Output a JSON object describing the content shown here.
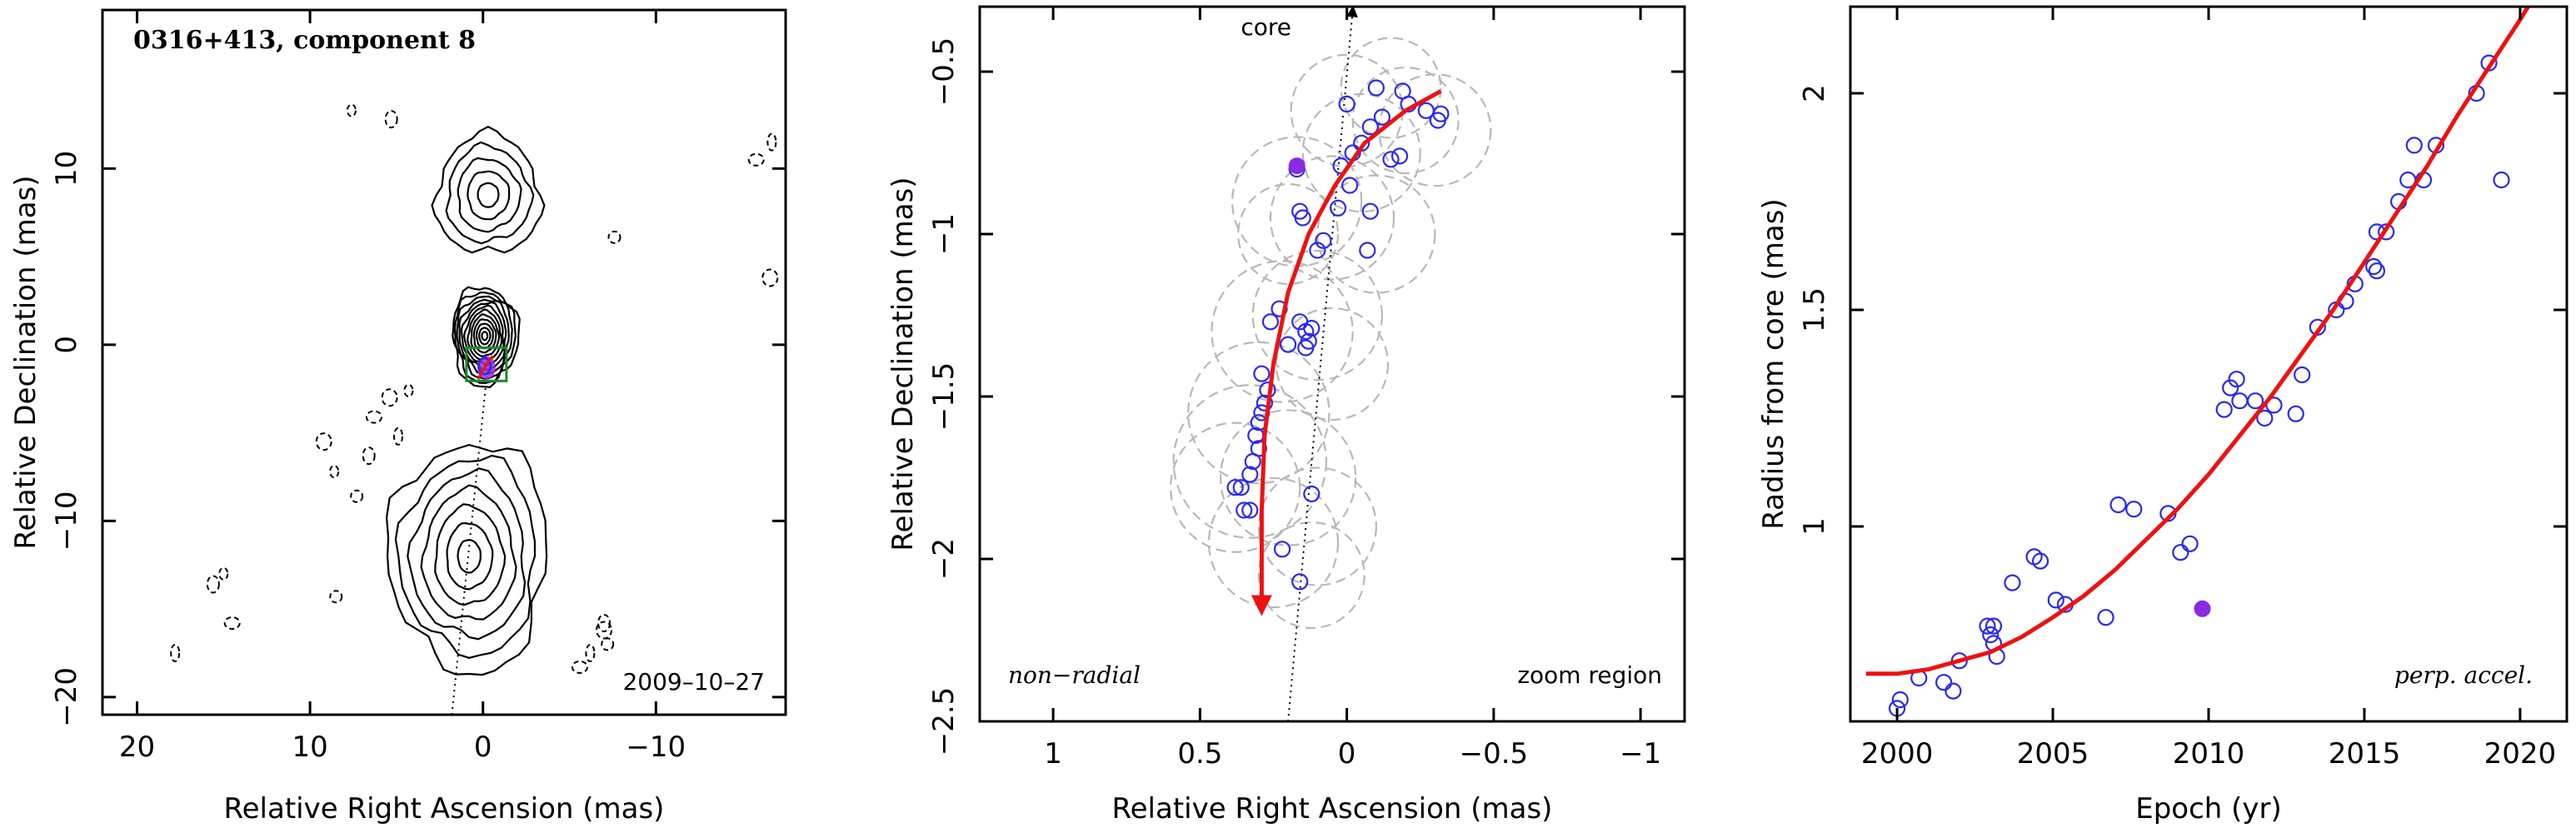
{
  "chart_data": [
    {
      "type": "contour",
      "title": "0316+413, component 8",
      "date_label": "2009–10–27",
      "xlabel": "Relative Right Ascension (mas)",
      "ylabel": "Relative Declination (mas)",
      "xlim": [
        22,
        -17.5
      ],
      "ylim": [
        -21,
        19
      ],
      "xticks": [
        20,
        10,
        0,
        -10
      ],
      "xtick_labels": [
        "20",
        "10",
        "0",
        "−10"
      ],
      "yticks": [
        10,
        0,
        -10,
        -20
      ],
      "ytick_labels": [
        "10",
        "0",
        "−10",
        "−20"
      ],
      "component_position": {
        "x": -0.2,
        "y": -1.3
      },
      "jet_axis": {
        "x1": 1.8,
        "y1": -21,
        "x2": -0.3,
        "y2": -1.0
      },
      "contour_regions": [
        {
          "name": "north lobe",
          "cx": -0.3,
          "cy": 8.5,
          "rx": 3.0,
          "ry": 3.4,
          "levels": 5
        },
        {
          "name": "core",
          "cx": -0.1,
          "cy": 0.5,
          "rx": 1.9,
          "ry": 2.8,
          "levels": 12
        },
        {
          "name": "south lobe",
          "cx": 0.8,
          "cy": -12.0,
          "rx": 4.6,
          "ry": 6.5,
          "levels": 7
        }
      ]
    },
    {
      "type": "scatter",
      "xlabel": "Relative Right Ascension (mas)",
      "ylabel": "Relative Declination (mas)",
      "xlim": [
        1.25,
        -1.15
      ],
      "ylim": [
        -2.5,
        -0.3
      ],
      "xticks": [
        1,
        0.5,
        0,
        -0.5,
        -1
      ],
      "xtick_labels": [
        "1",
        "0.5",
        "0",
        "−0.5",
        "−1"
      ],
      "yticks": [
        -0.5,
        -1,
        -1.5,
        -2,
        -2.5
      ],
      "ytick_labels": [
        "−0.5",
        "−1",
        "−1.5",
        "−2",
        "−2.5"
      ],
      "annotations": {
        "core": "core",
        "left": "non−radial",
        "right": "zoom region"
      },
      "core_line": {
        "x1": 0.2,
        "y1": -2.5,
        "x2": -0.02,
        "y2": -0.3
      },
      "highlight_point": {
        "x": 0.17,
        "y": -0.79
      },
      "points": [
        {
          "x": 0.35,
          "y": -1.85
        },
        {
          "x": 0.38,
          "y": -1.78
        },
        {
          "x": 0.36,
          "y": -1.78
        },
        {
          "x": 0.33,
          "y": -1.74
        },
        {
          "x": 0.32,
          "y": -1.7
        },
        {
          "x": 0.3,
          "y": -1.66
        },
        {
          "x": 0.31,
          "y": -1.62
        },
        {
          "x": 0.3,
          "y": -1.58
        },
        {
          "x": 0.29,
          "y": -1.55
        },
        {
          "x": 0.28,
          "y": -1.52
        },
        {
          "x": 0.27,
          "y": -1.48
        },
        {
          "x": 0.29,
          "y": -1.43
        },
        {
          "x": 0.33,
          "y": -1.85
        },
        {
          "x": 0.22,
          "y": -1.97
        },
        {
          "x": 0.12,
          "y": -1.8
        },
        {
          "x": 0.16,
          "y": -2.07
        },
        {
          "x": 0.26,
          "y": -1.27
        },
        {
          "x": 0.23,
          "y": -1.23
        },
        {
          "x": 0.2,
          "y": -1.34
        },
        {
          "x": 0.16,
          "y": -1.27
        },
        {
          "x": 0.14,
          "y": -1.3
        },
        {
          "x": 0.13,
          "y": -1.33
        },
        {
          "x": 0.14,
          "y": -1.35
        },
        {
          "x": 0.12,
          "y": -1.29
        },
        {
          "x": 0.1,
          "y": -1.05
        },
        {
          "x": 0.08,
          "y": -1.02
        },
        {
          "x": 0.15,
          "y": -0.95
        },
        {
          "x": 0.16,
          "y": -0.93
        },
        {
          "x": 0.17,
          "y": -0.8
        },
        {
          "x": 0.03,
          "y": -0.92
        },
        {
          "x": -0.01,
          "y": -0.85
        },
        {
          "x": 0.02,
          "y": -0.79
        },
        {
          "x": -0.02,
          "y": -0.75
        },
        {
          "x": -0.05,
          "y": -0.72
        },
        {
          "x": -0.08,
          "y": -0.67
        },
        {
          "x": -0.12,
          "y": -0.64
        },
        {
          "x": -0.15,
          "y": -0.77
        },
        {
          "x": -0.18,
          "y": -0.76
        },
        {
          "x": -0.08,
          "y": -0.93
        },
        {
          "x": -0.07,
          "y": -1.05
        },
        {
          "x": 0.0,
          "y": -0.6
        },
        {
          "x": -0.19,
          "y": -0.56
        },
        {
          "x": -0.21,
          "y": -0.6
        },
        {
          "x": -0.27,
          "y": -0.62
        },
        {
          "x": -0.31,
          "y": -0.65
        },
        {
          "x": -0.32,
          "y": -0.63
        },
        {
          "x": -0.1,
          "y": -0.55
        }
      ],
      "beam_circles": [
        {
          "x": 0.17,
          "y": -0.9,
          "r": 0.22
        },
        {
          "x": -0.05,
          "y": -0.75,
          "r": 0.2
        },
        {
          "x": -0.2,
          "y": -0.65,
          "r": 0.18
        },
        {
          "x": -0.3,
          "y": -0.68,
          "r": 0.19
        },
        {
          "x": 0.05,
          "y": -0.95,
          "r": 0.21
        },
        {
          "x": -0.1,
          "y": -1.0,
          "r": 0.2
        },
        {
          "x": 0.2,
          "y": -1.0,
          "r": 0.17
        },
        {
          "x": 0.1,
          "y": -1.25,
          "r": 0.22
        },
        {
          "x": 0.22,
          "y": -1.3,
          "r": 0.24
        },
        {
          "x": 0.05,
          "y": -1.4,
          "r": 0.19
        },
        {
          "x": 0.3,
          "y": -1.55,
          "r": 0.24
        },
        {
          "x": 0.33,
          "y": -1.7,
          "r": 0.26
        },
        {
          "x": 0.38,
          "y": -1.78,
          "r": 0.22
        },
        {
          "x": 0.2,
          "y": -1.75,
          "r": 0.23
        },
        {
          "x": 0.25,
          "y": -1.95,
          "r": 0.22
        },
        {
          "x": 0.1,
          "y": -1.9,
          "r": 0.2
        },
        {
          "x": 0.12,
          "y": -2.05,
          "r": 0.18
        },
        {
          "x": 0.0,
          "y": -0.62,
          "r": 0.19
        },
        {
          "x": -0.15,
          "y": -0.55,
          "r": 0.17
        }
      ],
      "fit_curve": [
        {
          "x": -0.32,
          "y": -0.56
        },
        {
          "x": -0.2,
          "y": -0.62
        },
        {
          "x": -0.06,
          "y": -0.72
        },
        {
          "x": 0.04,
          "y": -0.85
        },
        {
          "x": 0.13,
          "y": -1.0
        },
        {
          "x": 0.2,
          "y": -1.18
        },
        {
          "x": 0.25,
          "y": -1.4
        },
        {
          "x": 0.28,
          "y": -1.62
        },
        {
          "x": 0.29,
          "y": -1.85
        },
        {
          "x": 0.29,
          "y": -2.15
        }
      ]
    },
    {
      "type": "scatter",
      "xlabel": "Epoch (yr)",
      "ylabel": "Radius from core (mas)",
      "xlim": [
        1998.5,
        2021.5
      ],
      "ylim": [
        0.55,
        2.2
      ],
      "xticks": [
        2000,
        2005,
        2010,
        2015,
        2020
      ],
      "xtick_labels": [
        "2000",
        "2005",
        "2010",
        "2015",
        "2020"
      ],
      "yticks": [
        1,
        1.5,
        2
      ],
      "ytick_labels": [
        "1",
        "1.5",
        "2"
      ],
      "annotation": "perp. accel.",
      "highlight_point": {
        "x": 2009.8,
        "y": 0.81
      },
      "points": [
        {
          "x": 2000.0,
          "y": 0.58
        },
        {
          "x": 2000.1,
          "y": 0.6
        },
        {
          "x": 2000.7,
          "y": 0.65
        },
        {
          "x": 2001.5,
          "y": 0.64
        },
        {
          "x": 2001.8,
          "y": 0.62
        },
        {
          "x": 2002.0,
          "y": 0.69
        },
        {
          "x": 2002.9,
          "y": 0.77
        },
        {
          "x": 2003.0,
          "y": 0.75
        },
        {
          "x": 2003.1,
          "y": 0.77
        },
        {
          "x": 2003.1,
          "y": 0.73
        },
        {
          "x": 2003.2,
          "y": 0.7
        },
        {
          "x": 2003.7,
          "y": 0.87
        },
        {
          "x": 2004.4,
          "y": 0.93
        },
        {
          "x": 2004.6,
          "y": 0.92
        },
        {
          "x": 2005.1,
          "y": 0.83
        },
        {
          "x": 2005.4,
          "y": 0.82
        },
        {
          "x": 2006.7,
          "y": 0.79
        },
        {
          "x": 2007.1,
          "y": 1.05
        },
        {
          "x": 2007.6,
          "y": 1.04
        },
        {
          "x": 2008.7,
          "y": 1.03
        },
        {
          "x": 2009.1,
          "y": 0.94
        },
        {
          "x": 2009.4,
          "y": 0.96
        },
        {
          "x": 2010.5,
          "y": 1.27
        },
        {
          "x": 2010.7,
          "y": 1.32
        },
        {
          "x": 2010.9,
          "y": 1.34
        },
        {
          "x": 2011.0,
          "y": 1.29
        },
        {
          "x": 2011.5,
          "y": 1.29
        },
        {
          "x": 2011.8,
          "y": 1.25
        },
        {
          "x": 2012.1,
          "y": 1.28
        },
        {
          "x": 2012.8,
          "y": 1.26
        },
        {
          "x": 2013.0,
          "y": 1.35
        },
        {
          "x": 2013.5,
          "y": 1.46
        },
        {
          "x": 2014.1,
          "y": 1.5
        },
        {
          "x": 2014.4,
          "y": 1.52
        },
        {
          "x": 2014.7,
          "y": 1.56
        },
        {
          "x": 2015.3,
          "y": 1.6
        },
        {
          "x": 2015.4,
          "y": 1.59
        },
        {
          "x": 2015.4,
          "y": 1.68
        },
        {
          "x": 2015.7,
          "y": 1.68
        },
        {
          "x": 2016.1,
          "y": 1.75
        },
        {
          "x": 2016.4,
          "y": 1.8
        },
        {
          "x": 2016.6,
          "y": 1.88
        },
        {
          "x": 2016.9,
          "y": 1.8
        },
        {
          "x": 2017.3,
          "y": 1.88
        },
        {
          "x": 2018.6,
          "y": 2.0
        },
        {
          "x": 2019.0,
          "y": 2.07
        },
        {
          "x": 2019.4,
          "y": 1.8
        }
      ],
      "fit_curve": [
        {
          "x": 1999.0,
          "y": 0.66
        },
        {
          "x": 2000.0,
          "y": 0.66
        },
        {
          "x": 2001.0,
          "y": 0.67
        },
        {
          "x": 2002.0,
          "y": 0.69
        },
        {
          "x": 2003.0,
          "y": 0.71
        },
        {
          "x": 2004.0,
          "y": 0.745
        },
        {
          "x": 2005.0,
          "y": 0.79
        },
        {
          "x": 2006.0,
          "y": 0.84
        },
        {
          "x": 2007.0,
          "y": 0.9
        },
        {
          "x": 2008.0,
          "y": 0.97
        },
        {
          "x": 2009.0,
          "y": 1.04
        },
        {
          "x": 2010.0,
          "y": 1.12
        },
        {
          "x": 2011.0,
          "y": 1.21
        },
        {
          "x": 2012.0,
          "y": 1.3
        },
        {
          "x": 2013.0,
          "y": 1.4
        },
        {
          "x": 2014.0,
          "y": 1.5
        },
        {
          "x": 2015.0,
          "y": 1.61
        },
        {
          "x": 2016.0,
          "y": 1.72
        },
        {
          "x": 2017.0,
          "y": 1.83
        },
        {
          "x": 2018.0,
          "y": 1.95
        },
        {
          "x": 2019.0,
          "y": 2.06
        },
        {
          "x": 2020.0,
          "y": 2.17
        },
        {
          "x": 2020.6,
          "y": 2.24
        }
      ]
    }
  ]
}
